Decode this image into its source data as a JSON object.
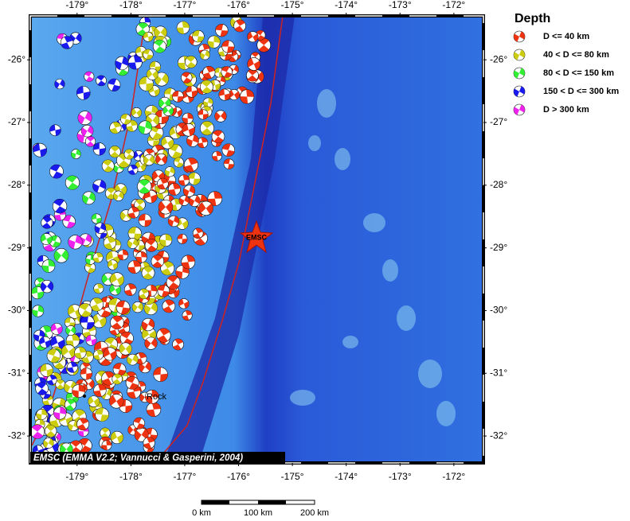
{
  "map": {
    "credit": "EMSC (EMMA V2.2; Vannucci & Gasperini, 2004)",
    "xlim": [
      -179.87,
      -171.45
    ],
    "ylim": [
      -25.3,
      -32.43
    ],
    "xticks": [
      {
        "value": -179,
        "label": "-179°"
      },
      {
        "value": -178,
        "label": "-178°"
      },
      {
        "value": -177,
        "label": "-177°"
      },
      {
        "value": -176,
        "label": "-176°"
      },
      {
        "value": -175,
        "label": "-175°"
      },
      {
        "value": -174,
        "label": "-174°"
      },
      {
        "value": -173,
        "label": "-173°"
      },
      {
        "value": -172,
        "label": "-172°"
      }
    ],
    "yticks": [
      {
        "value": -26,
        "label": "-26°"
      },
      {
        "value": -27,
        "label": "-27°"
      },
      {
        "value": -28,
        "label": "-28°"
      },
      {
        "value": -29,
        "label": "-29°"
      },
      {
        "value": -30,
        "label": "-30°"
      },
      {
        "value": -31,
        "label": "-31°"
      },
      {
        "value": -32,
        "label": "-32°"
      }
    ],
    "epicenter_label": "EMSC",
    "place_label": "Rock",
    "legend": {
      "title": "Depth",
      "entries": [
        {
          "label": "D <= 40 km",
          "color": "#ee3311"
        },
        {
          "label": "40 < D <= 80 km",
          "color": "#cccc11"
        },
        {
          "label": "80 < D <= 150 km",
          "color": "#33ee33"
        },
        {
          "label": "150 < D <= 300 km",
          "color": "#1a1aee"
        },
        {
          "label": "D > 300 km",
          "color": "#ee22ee"
        }
      ]
    },
    "scale_bar": {
      "labels": [
        "0 km",
        "100 km",
        "200 km"
      ]
    }
  }
}
